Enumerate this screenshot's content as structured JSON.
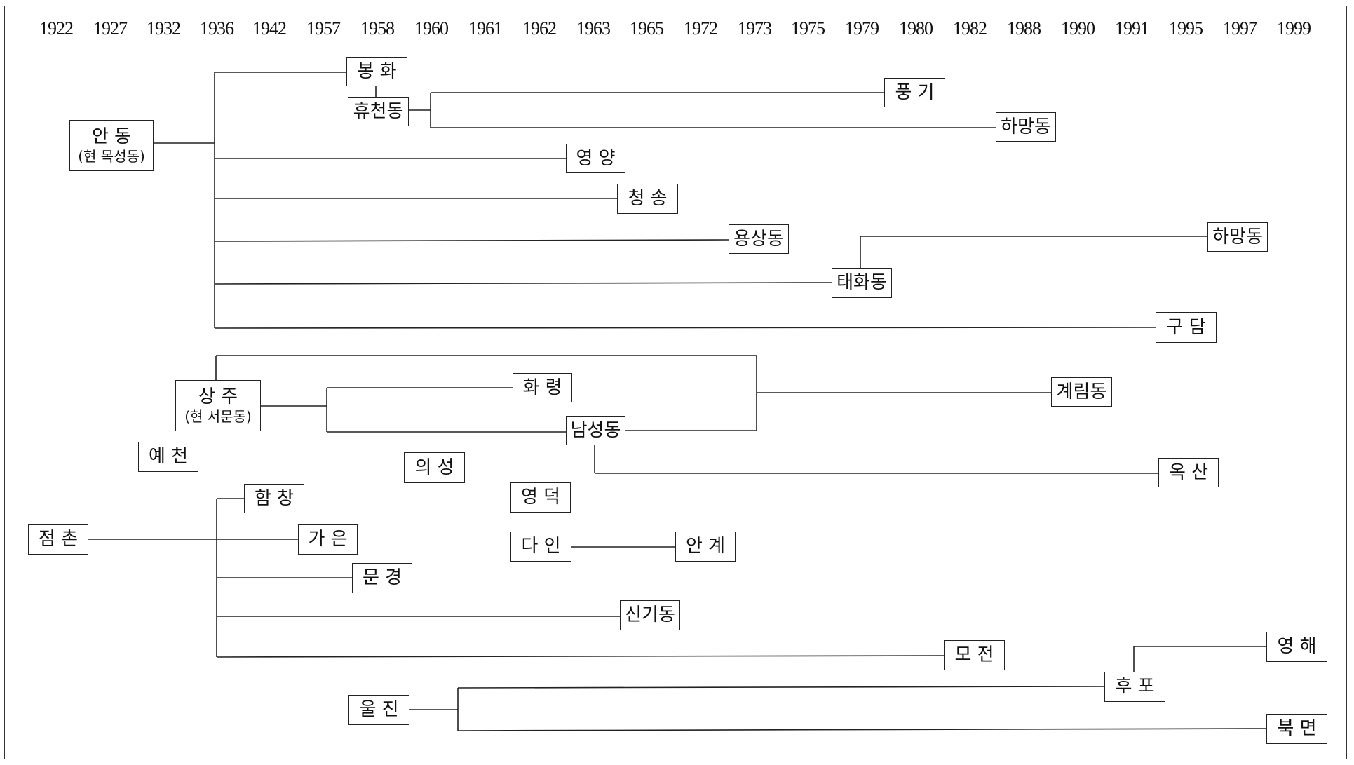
{
  "years": [
    "1922",
    "1927",
    "1932",
    "1936",
    "1942",
    "1957",
    "1958",
    "1960",
    "1961",
    "1962",
    "1963",
    "1965",
    "1972",
    "1973",
    "1975",
    "1979",
    "1980",
    "1982",
    "1988",
    "1990",
    "1991",
    "1995",
    "1997",
    "1999"
  ],
  "nodes": {
    "andong": {
      "label": "안 동",
      "sub": "(현 목성동)"
    },
    "bonghwa": {
      "label": "봉 화"
    },
    "hyucheon": {
      "label": "휴천동"
    },
    "punggi": {
      "label": "풍 기"
    },
    "hamang1": {
      "label": "하망동"
    },
    "yeongyang": {
      "label": "영 양"
    },
    "cheongsong": {
      "label": "청 송"
    },
    "yongsang": {
      "label": "용상동"
    },
    "taehwa": {
      "label": "태화동"
    },
    "hamang2": {
      "label": "하망동"
    },
    "gudam": {
      "label": "구 담"
    },
    "sangju": {
      "label": "상 주",
      "sub": "(현 서문동)"
    },
    "hwaryeong": {
      "label": "화 령"
    },
    "namseong": {
      "label": "남성동"
    },
    "gyerim": {
      "label": "계림동"
    },
    "oksan": {
      "label": "옥 산"
    },
    "yecheon": {
      "label": "예 천"
    },
    "uiseong": {
      "label": "의 성"
    },
    "yeongdeok": {
      "label": "영 덕"
    },
    "dain": {
      "label": "다 인"
    },
    "angye": {
      "label": "안 계"
    },
    "jeomchon": {
      "label": "점 촌"
    },
    "hamchang": {
      "label": "함 창"
    },
    "gaeun": {
      "label": "가 은"
    },
    "mungyeong": {
      "label": "문 경"
    },
    "singi": {
      "label": "신기동"
    },
    "mojeon": {
      "label": "모 전"
    },
    "uljin": {
      "label": "울 진"
    },
    "hupo": {
      "label": "후 포"
    },
    "yeonghae": {
      "label": "영 해"
    },
    "bukmyeon": {
      "label": "북 면"
    }
  }
}
